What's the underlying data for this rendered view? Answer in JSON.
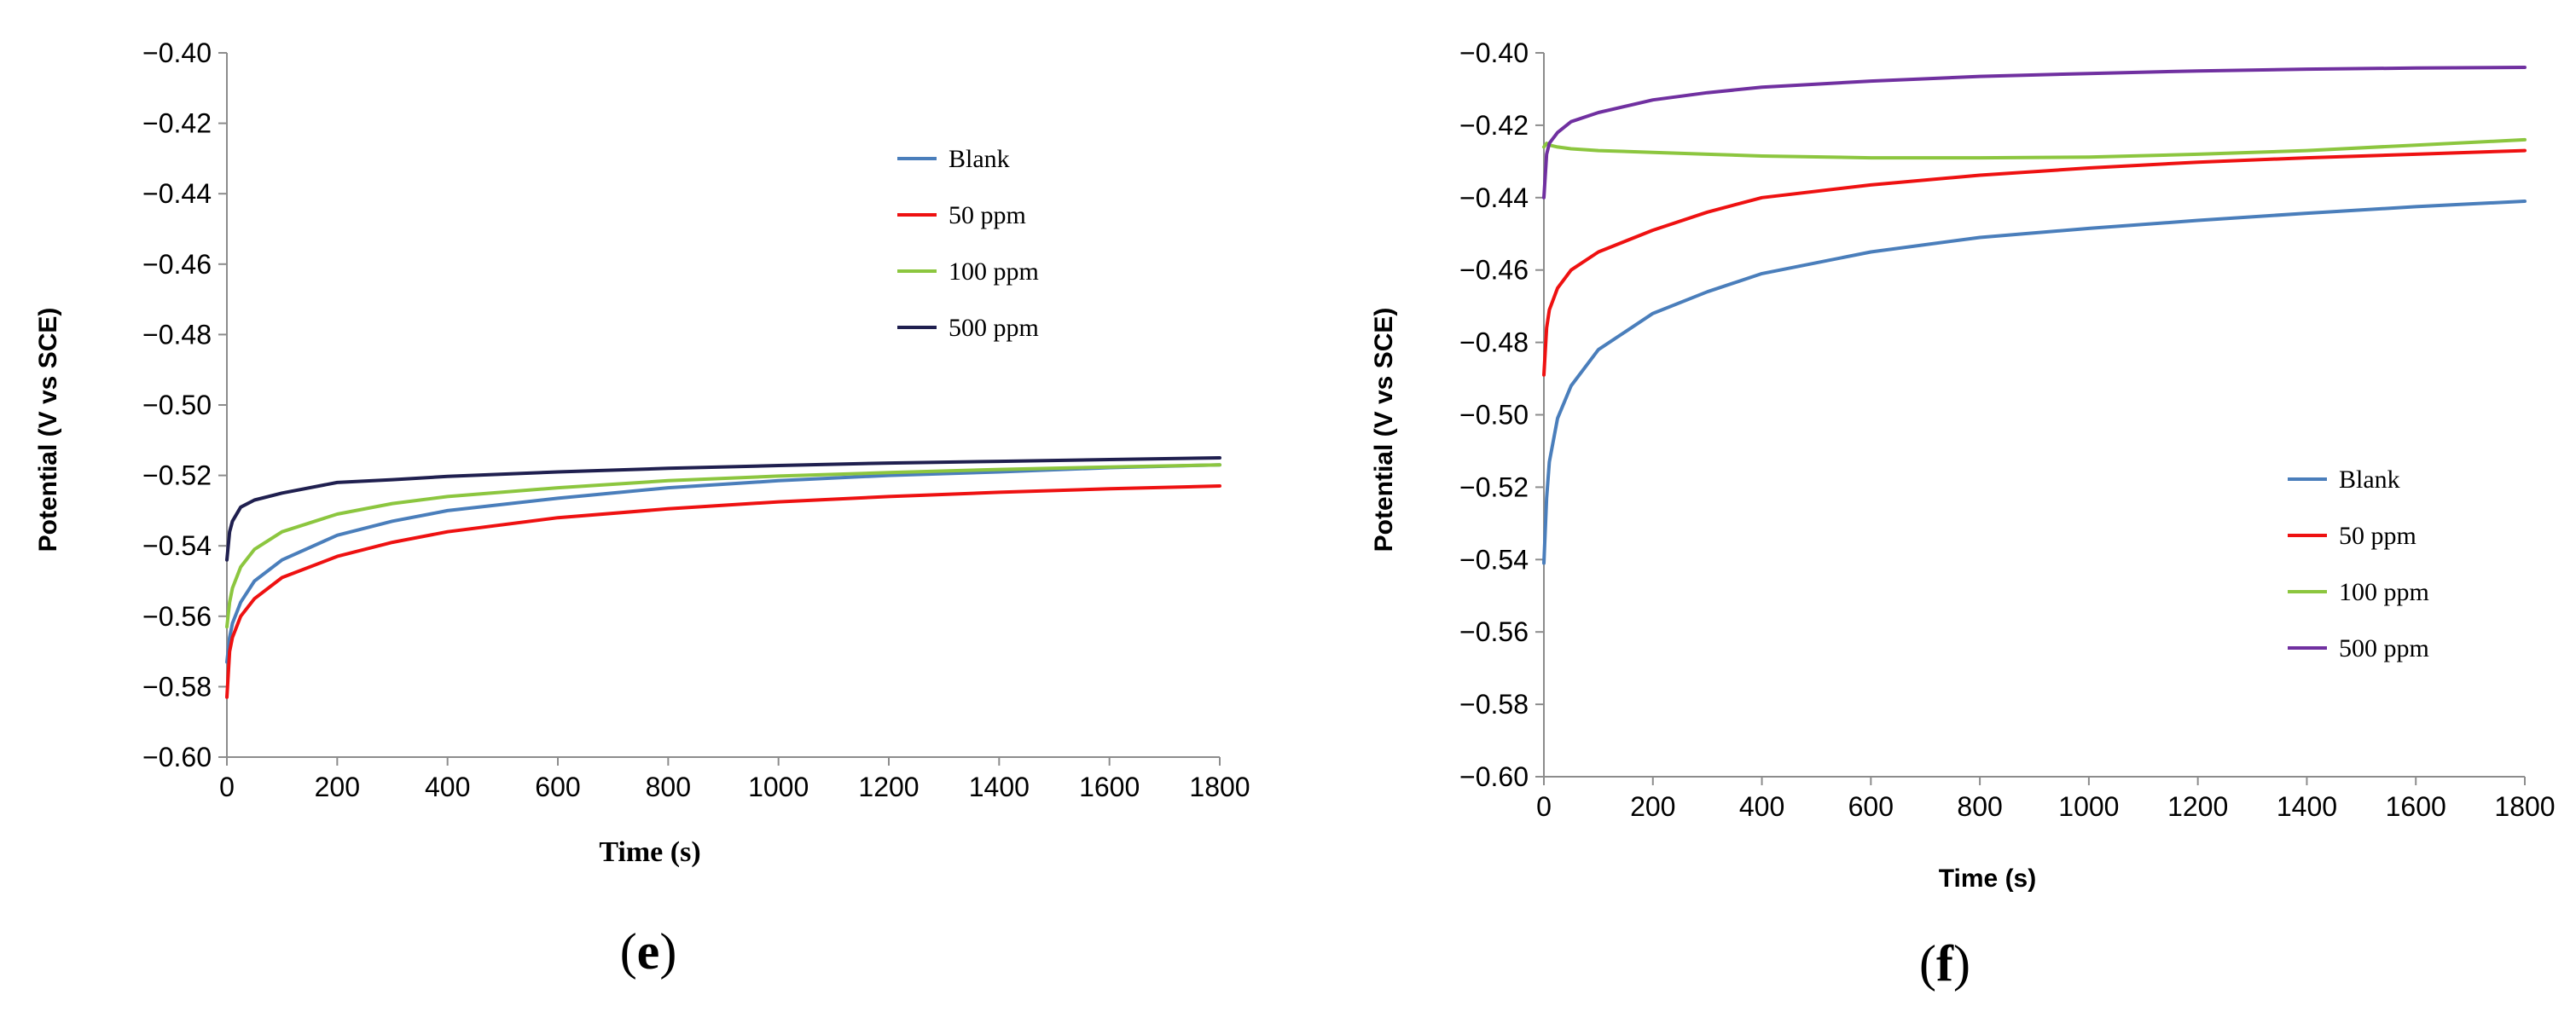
{
  "chart_data": [
    {
      "type": "line",
      "panel_label": "e",
      "title": "",
      "xlabel": "Time (s)",
      "ylabel": "Potential (V vs SCE)",
      "xlim": [
        0,
        1800
      ],
      "ylim": [
        -0.6,
        -0.4
      ],
      "x_ticks": [
        "0",
        "200",
        "400",
        "600",
        "800",
        "1000",
        "1200",
        "1400",
        "1600",
        "1800"
      ],
      "y_ticks": [
        "−0.40",
        "−0.42",
        "−0.44",
        "−0.46",
        "−0.48",
        "−0.50",
        "−0.52",
        "−0.54",
        "−0.56",
        "−0.58",
        "−0.60"
      ],
      "grid": false,
      "legend_position": "upper-right",
      "series": [
        {
          "name": "Blank",
          "color": "#4a7ebb",
          "x": [
            0,
            5,
            10,
            25,
            50,
            100,
            200,
            300,
            400,
            600,
            800,
            1000,
            1200,
            1400,
            1600,
            1800
          ],
          "y": [
            -0.573,
            -0.566,
            -0.562,
            -0.556,
            -0.55,
            -0.544,
            -0.537,
            -0.533,
            -0.53,
            -0.5265,
            -0.5235,
            -0.5215,
            -0.52,
            -0.519,
            -0.5178,
            -0.517
          ]
        },
        {
          "name": "50 ppm",
          "color": "#ee1111",
          "x": [
            0,
            5,
            10,
            25,
            50,
            100,
            200,
            300,
            400,
            600,
            800,
            1000,
            1200,
            1400,
            1600,
            1800
          ],
          "y": [
            -0.583,
            -0.57,
            -0.566,
            -0.56,
            -0.555,
            -0.549,
            -0.543,
            -0.539,
            -0.536,
            -0.532,
            -0.5295,
            -0.5275,
            -0.526,
            -0.5248,
            -0.5238,
            -0.523
          ]
        },
        {
          "name": "100 ppm",
          "color": "#8cc63f",
          "x": [
            0,
            5,
            10,
            25,
            50,
            100,
            200,
            300,
            400,
            600,
            800,
            1000,
            1200,
            1400,
            1600,
            1800
          ],
          "y": [
            -0.563,
            -0.556,
            -0.552,
            -0.546,
            -0.541,
            -0.536,
            -0.531,
            -0.528,
            -0.526,
            -0.5235,
            -0.5215,
            -0.5202,
            -0.5192,
            -0.5183,
            -0.5176,
            -0.517
          ]
        },
        {
          "name": "500 ppm",
          "color": "#1f1f4f",
          "x": [
            0,
            5,
            10,
            25,
            50,
            100,
            200,
            300,
            400,
            600,
            800,
            1000,
            1200,
            1400,
            1600,
            1800
          ],
          "y": [
            -0.544,
            -0.536,
            -0.533,
            -0.529,
            -0.527,
            -0.525,
            -0.522,
            -0.5212,
            -0.5203,
            -0.519,
            -0.518,
            -0.5172,
            -0.5165,
            -0.516,
            -0.5155,
            -0.515
          ]
        }
      ]
    },
    {
      "type": "line",
      "panel_label": "f",
      "title": "",
      "xlabel": "Time (s)",
      "ylabel": "Potential (V vs SCE)",
      "xlim": [
        0,
        1800
      ],
      "ylim": [
        -0.6,
        -0.4
      ],
      "x_ticks": [
        "0",
        "200",
        "400",
        "600",
        "800",
        "1000",
        "1200",
        "1400",
        "1600",
        "1800"
      ],
      "y_ticks": [
        "−0.40",
        "−0.42",
        "−0.44",
        "−0.46",
        "−0.48",
        "−0.50",
        "−0.52",
        "−0.54",
        "−0.56",
        "−0.58",
        "−0.60"
      ],
      "grid": false,
      "legend_position": "lower-right",
      "series": [
        {
          "name": "Blank",
          "color": "#4a7ebb",
          "x": [
            0,
            5,
            10,
            25,
            50,
            100,
            200,
            300,
            400,
            600,
            800,
            1000,
            1200,
            1400,
            1600,
            1800
          ],
          "y": [
            -0.541,
            -0.523,
            -0.513,
            -0.501,
            -0.492,
            -0.482,
            -0.472,
            -0.466,
            -0.461,
            -0.455,
            -0.451,
            -0.4485,
            -0.4463,
            -0.4443,
            -0.4425,
            -0.441
          ]
        },
        {
          "name": "50 ppm",
          "color": "#ee1111",
          "x": [
            0,
            5,
            10,
            25,
            50,
            100,
            200,
            300,
            400,
            600,
            800,
            1000,
            1200,
            1400,
            1600,
            1800
          ],
          "y": [
            -0.489,
            -0.476,
            -0.471,
            -0.465,
            -0.46,
            -0.455,
            -0.449,
            -0.444,
            -0.44,
            -0.4365,
            -0.4338,
            -0.4318,
            -0.4302,
            -0.429,
            -0.428,
            -0.427
          ]
        },
        {
          "name": "100 ppm",
          "color": "#8cc63f",
          "x": [
            0,
            5,
            10,
            25,
            50,
            100,
            200,
            300,
            400,
            600,
            800,
            1000,
            1200,
            1400,
            1600,
            1800
          ],
          "y": [
            -0.426,
            -0.425,
            -0.4255,
            -0.426,
            -0.4265,
            -0.427,
            -0.4275,
            -0.428,
            -0.4285,
            -0.429,
            -0.429,
            -0.4288,
            -0.428,
            -0.427,
            -0.4255,
            -0.424
          ]
        },
        {
          "name": "500 ppm",
          "color": "#7030a0",
          "x": [
            0,
            5,
            10,
            25,
            50,
            100,
            200,
            300,
            400,
            600,
            800,
            1000,
            1200,
            1400,
            1600,
            1800
          ],
          "y": [
            -0.44,
            -0.428,
            -0.425,
            -0.422,
            -0.419,
            -0.4165,
            -0.413,
            -0.411,
            -0.4095,
            -0.4078,
            -0.4065,
            -0.4057,
            -0.405,
            -0.4045,
            -0.4042,
            -0.404
          ]
        }
      ]
    }
  ]
}
